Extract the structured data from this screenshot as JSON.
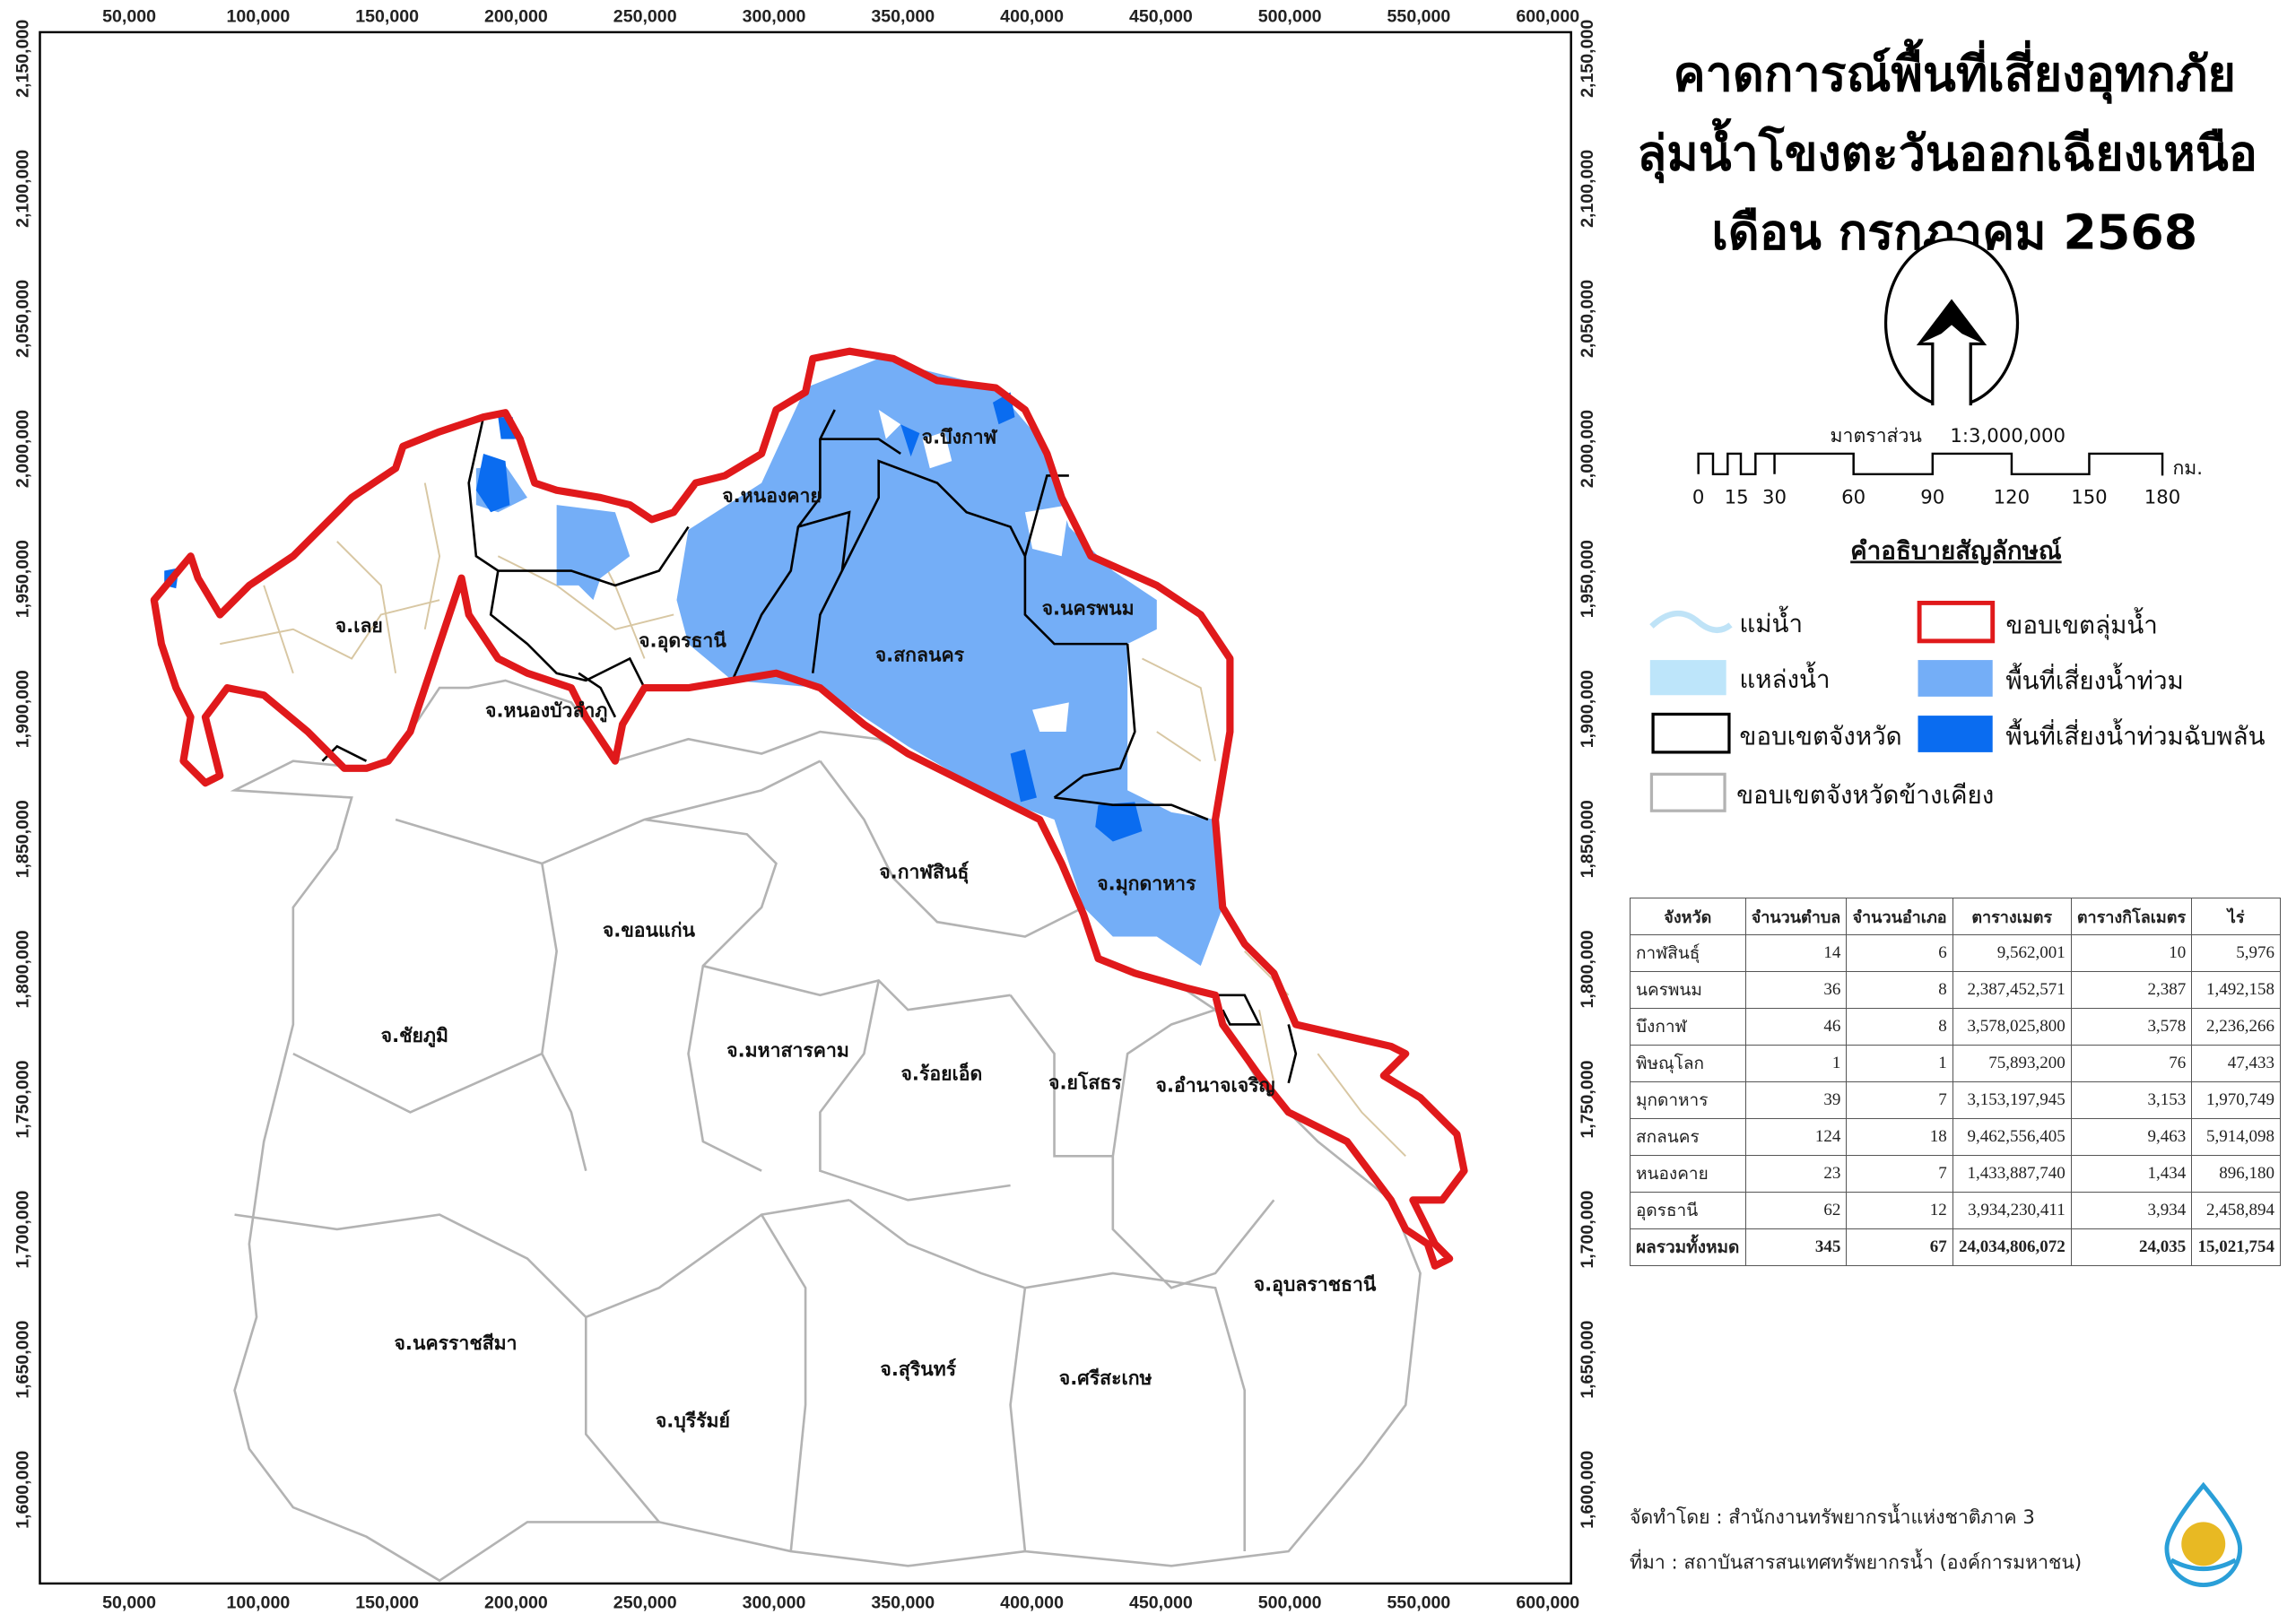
{
  "title": {
    "line1": "คาดการณ์พื้นที่เสี่ยงอุทกภัย",
    "line2": "ลุ่มน้ำโขงตะวันออกเฉียงเหนือ",
    "line3": "เดือน กรกฎาคม 2568"
  },
  "scale": {
    "label": "มาตราส่วน",
    "ratio": "1:3,000,000",
    "unit": "กม.",
    "ticks": [
      "0",
      "15",
      "30",
      "60",
      "90",
      "120",
      "150",
      "180"
    ]
  },
  "legend": {
    "heading": "คำอธิบายสัญลักษณ์",
    "items": [
      {
        "label": "แม่น้ำ",
        "symbol": "river-line",
        "color": "#bfe3f7"
      },
      {
        "label": "ขอบเขตลุ่มน้ำ",
        "symbol": "outline",
        "color": "#e0191b"
      },
      {
        "label": "แหล่งน้ำ",
        "symbol": "fill",
        "color": "#bde5fa"
      },
      {
        "label": "พื้นที่เสี่ยงน้ำท่วม",
        "symbol": "fill",
        "color": "#74aef7"
      },
      {
        "label": "ขอบเขตจังหวัด",
        "symbol": "outline",
        "color": "#000000"
      },
      {
        "label": "พื้นที่เสี่ยงน้ำท่วมฉับพลัน",
        "symbol": "fill",
        "color": "#0a6cf0"
      },
      {
        "label": "ขอบเขตจังหวัดข้างเคียง",
        "symbol": "outline",
        "color": "#b3b3b3"
      }
    ]
  },
  "axes": {
    "x_ticks": [
      "50,000",
      "100,000",
      "150,000",
      "200,000",
      "250,000",
      "300,000",
      "350,000",
      "400,000",
      "450,000",
      "500,000",
      "550,000",
      "600,000"
    ],
    "y_ticks": [
      "2,150,000",
      "2,100,000",
      "2,050,000",
      "2,000,000",
      "1,950,000",
      "1,900,000",
      "1,850,000",
      "1,800,000",
      "1,750,000",
      "1,700,000",
      "1,650,000",
      "1,600,000"
    ]
  },
  "provinces": {
    "basin": [
      "จ.บึงกาฬ",
      "จ.หนองคาย",
      "จ.นครพนม",
      "จ.เลย",
      "จ.อุดรธานี",
      "จ.สกลนคร",
      "จ.หนองบัวลำภู",
      "จ.มุกดาหาร"
    ],
    "neighbors": [
      "จ.กาฬสินธุ์",
      "จ.ขอนแก่น",
      "จ.ชัยภูมิ",
      "จ.มหาสารคาม",
      "จ.ร้อยเอ็ด",
      "จ.ยโสธร",
      "จ.อำนาจเจริญ",
      "จ.อุบลราชธานี",
      "จ.นครราชสีมา",
      "จ.สุรินทร์",
      "จ.ศรีสะเกษ",
      "จ.บุรีรัมย์"
    ]
  },
  "table": {
    "headers": [
      "จังหวัด",
      "จำนวนตำบล",
      "จำนวนอำเภอ",
      "ตารางเมตร",
      "ตารางกิโลเมตร",
      "ไร่"
    ],
    "rows": [
      [
        "กาฬสินธุ์",
        "14",
        "6",
        "9,562,001",
        "10",
        "5,976"
      ],
      [
        "นครพนม",
        "36",
        "8",
        "2,387,452,571",
        "2,387",
        "1,492,158"
      ],
      [
        "บึงกาฬ",
        "46",
        "8",
        "3,578,025,800",
        "3,578",
        "2,236,266"
      ],
      [
        "พิษณุโลก",
        "1",
        "1",
        "75,893,200",
        "76",
        "47,433"
      ],
      [
        "มุกดาหาร",
        "39",
        "7",
        "3,153,197,945",
        "3,153",
        "1,970,749"
      ],
      [
        "สกลนคร",
        "124",
        "18",
        "9,462,556,405",
        "9,463",
        "5,914,098"
      ],
      [
        "หนองคาย",
        "23",
        "7",
        "1,433,887,740",
        "1,434",
        "896,180"
      ],
      [
        "อุดรธานี",
        "62",
        "12",
        "3,934,230,411",
        "3,934",
        "2,458,894"
      ]
    ],
    "total": [
      "ผลรวมทั้งหมด",
      "345",
      "67",
      "24,034,806,072",
      "24,035",
      "15,021,754"
    ]
  },
  "credits": {
    "made_by": "จัดทำโดย : สำนักงานทรัพยากรน้ำแห่งชาติภาค 3",
    "source": "ที่มา : สถาบันสารสนเทศทรัพยากรน้ำ (องค์การมหาชน)"
  },
  "logo": {
    "name": "water-agency-logo"
  }
}
